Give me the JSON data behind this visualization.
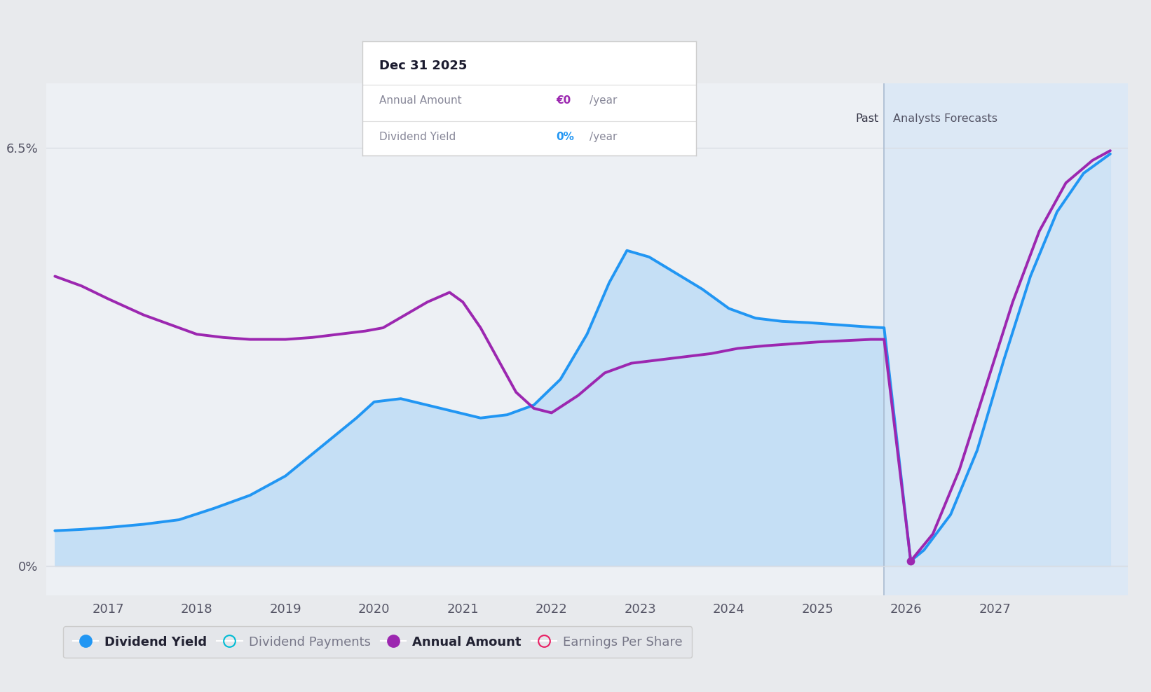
{
  "background_color": "#e8eaed",
  "plot_bg_color": "#edf0f4",
  "x_min": 2016.3,
  "x_max": 2028.5,
  "y_min": -0.45,
  "y_max": 7.5,
  "x_ticks": [
    2017,
    2018,
    2019,
    2020,
    2021,
    2022,
    2023,
    2024,
    2025,
    2026,
    2027
  ],
  "forecast_start": 2025.75,
  "dividend_yield_x": [
    2016.4,
    2016.7,
    2017.0,
    2017.4,
    2017.8,
    2018.2,
    2018.6,
    2019.0,
    2019.4,
    2019.8,
    2020.0,
    2020.3,
    2020.6,
    2020.9,
    2021.2,
    2021.5,
    2021.8,
    2022.1,
    2022.4,
    2022.65,
    2022.85,
    2023.1,
    2023.4,
    2023.7,
    2024.0,
    2024.3,
    2024.6,
    2024.9,
    2025.2,
    2025.5,
    2025.75,
    2026.05,
    2026.2,
    2026.5,
    2026.8,
    2027.1,
    2027.4,
    2027.7,
    2028.0,
    2028.3
  ],
  "dividend_yield_y": [
    0.55,
    0.57,
    0.6,
    0.65,
    0.72,
    0.9,
    1.1,
    1.4,
    1.85,
    2.3,
    2.55,
    2.6,
    2.5,
    2.4,
    2.3,
    2.35,
    2.5,
    2.9,
    3.6,
    4.4,
    4.9,
    4.8,
    4.55,
    4.3,
    4.0,
    3.85,
    3.8,
    3.78,
    3.75,
    3.72,
    3.7,
    0.08,
    0.25,
    0.8,
    1.8,
    3.2,
    4.5,
    5.5,
    6.1,
    6.4
  ],
  "annual_amount_x": [
    2016.4,
    2016.7,
    2017.0,
    2017.4,
    2017.8,
    2018.0,
    2018.3,
    2018.6,
    2019.0,
    2019.3,
    2019.6,
    2019.9,
    2020.1,
    2020.35,
    2020.6,
    2020.85,
    2021.0,
    2021.2,
    2021.4,
    2021.6,
    2021.8,
    2022.0,
    2022.3,
    2022.6,
    2022.9,
    2023.2,
    2023.5,
    2023.8,
    2024.1,
    2024.4,
    2024.7,
    2025.0,
    2025.3,
    2025.6,
    2025.75,
    2026.05,
    2026.3,
    2026.6,
    2026.9,
    2027.2,
    2027.5,
    2027.8,
    2028.1,
    2028.3
  ],
  "annual_amount_y": [
    4.5,
    4.35,
    4.15,
    3.9,
    3.7,
    3.6,
    3.55,
    3.52,
    3.52,
    3.55,
    3.6,
    3.65,
    3.7,
    3.9,
    4.1,
    4.25,
    4.1,
    3.7,
    3.2,
    2.7,
    2.45,
    2.38,
    2.65,
    3.0,
    3.15,
    3.2,
    3.25,
    3.3,
    3.38,
    3.42,
    3.45,
    3.48,
    3.5,
    3.52,
    3.52,
    0.08,
    0.5,
    1.5,
    2.8,
    4.1,
    5.2,
    5.95,
    6.3,
    6.45
  ],
  "dividend_yield_color": "#2196f3",
  "dividend_yield_fill_past": "#c5dff5",
  "annual_amount_color": "#9c27b0",
  "forecast_fill_color": "#dce8f5",
  "grid_color": "#d8dce2",
  "tooltip_title": "Dec 31 2025",
  "tooltip_row1_label": "Annual Amount",
  "tooltip_row1_value": "€0",
  "tooltip_row1_value_color": "#9c27b0",
  "tooltip_row1_unit": "/year",
  "tooltip_row2_label": "Dividend Yield",
  "tooltip_row2_value": "0%",
  "tooltip_row2_value_color": "#2196f3",
  "tooltip_row2_unit": "/year",
  "past_label": "Past",
  "analysts_label": "Analysts Forecasts",
  "legend_items": [
    {
      "label": "Dividend Yield",
      "face": "#2196f3",
      "edge": null,
      "bold": true
    },
    {
      "label": "Dividend Payments",
      "face": "none",
      "edge": "#00bcd4",
      "bold": false
    },
    {
      "label": "Annual Amount",
      "face": "#9c27b0",
      "edge": null,
      "bold": true
    },
    {
      "label": "Earnings Per Share",
      "face": "none",
      "edge": "#e91e63",
      "bold": false
    }
  ]
}
